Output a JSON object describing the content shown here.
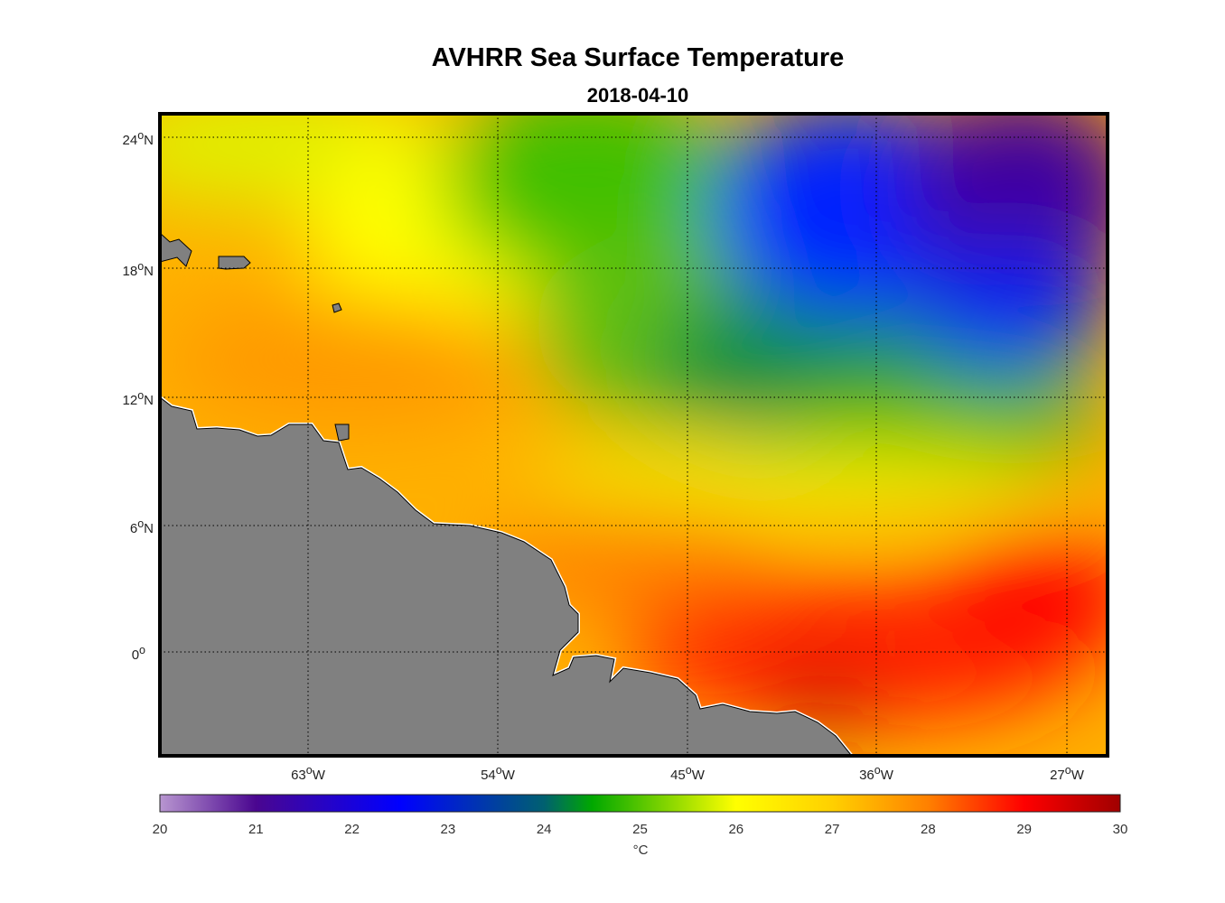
{
  "title": "AVHRR Sea Surface Temperature",
  "subtitle": "2018-04-10",
  "chart_data": {
    "type": "heatmap",
    "variable": "Sea surface temperature",
    "lat_ticks": [
      "24",
      "18",
      "12",
      "6",
      "0"
    ],
    "lon_ticks": [
      "63",
      "54",
      "45",
      "36",
      "27"
    ],
    "lat_suffix": "N",
    "lon_suffix": "W",
    "colorbar": {
      "min": 20,
      "max": 30,
      "ticks": [
        "20",
        "21",
        "22",
        "23",
        "24",
        "25",
        "26",
        "27",
        "28",
        "29",
        "30"
      ],
      "unit": "°C"
    }
  },
  "colors": {
    "land": "#808080",
    "frame": "#000000"
  }
}
